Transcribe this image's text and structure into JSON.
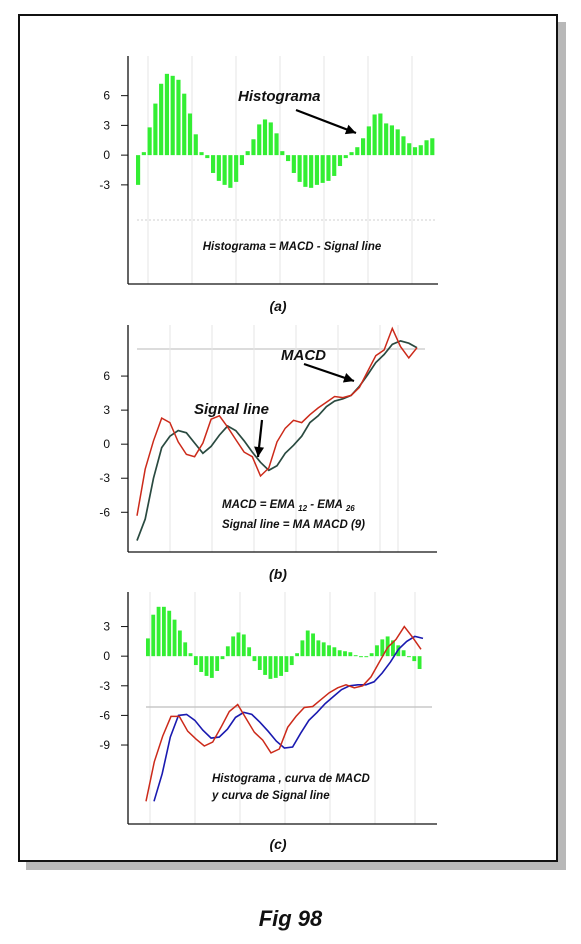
{
  "figure": {
    "title": "Fig 98",
    "panel_captions": [
      "(a)",
      "(b)",
      "(c)"
    ]
  },
  "colors": {
    "histogram": "#33ee33",
    "macd": "#cc2a1a",
    "signal_b": "#2a4a40",
    "signal_c": "#1a1ab0",
    "axis": "#111111",
    "grid": "#e6e6e6"
  },
  "chart_data": [
    {
      "type": "bar",
      "panel": "(a)",
      "ylim": [
        -13,
        10
      ],
      "yticks": [
        6,
        3,
        0,
        -3
      ],
      "values": [
        -3,
        0.3,
        2.8,
        5.2,
        7.2,
        8.2,
        8,
        7.6,
        6.2,
        4.2,
        2.1,
        0.3,
        -0.3,
        -1.8,
        -2.6,
        -3,
        -3.3,
        -2.7,
        -1,
        0.4,
        1.6,
        3.1,
        3.6,
        3.3,
        2.2,
        0.4,
        -0.6,
        -1.8,
        -2.7,
        -3.2,
        -3.3,
        -3,
        -2.8,
        -2.6,
        -2.1,
        -1.1,
        -0.3,
        0.3,
        0.8,
        1.7,
        2.9,
        4.1,
        4.2,
        3.2,
        3,
        2.6,
        1.9,
        1.2,
        0.8,
        1,
        1.5,
        1.7
      ],
      "annotations": [
        "Histograma",
        "Histograma = MACD - Signal line"
      ]
    },
    {
      "type": "line",
      "panel": "(b)",
      "ylim": [
        -9.5,
        10.5
      ],
      "yticks": [
        6,
        3,
        0,
        -3,
        -6
      ],
      "series": [
        {
          "name": "MACD",
          "values": [
            -6.3,
            -2.2,
            0.3,
            2.3,
            1.9,
            0.2,
            -0.9,
            -1.1,
            0.1,
            2.2,
            2.5,
            1.5,
            0.4,
            -0.7,
            -1.1,
            -2.8,
            -2.1,
            0.2,
            1.4,
            2.1,
            1.9,
            2.6,
            3.2,
            3.7,
            4.2,
            4.1,
            4.3,
            5,
            6.4,
            7.8,
            8.3,
            10.2,
            8.6,
            7.6,
            8.5
          ]
        },
        {
          "name": "Signal line",
          "values": [
            -8.5,
            -6.6,
            -3,
            -0.3,
            0.7,
            1.2,
            1,
            0.1,
            -0.8,
            -0.2,
            0.8,
            1.6,
            1.2,
            0.3,
            -0.7,
            -1.6,
            -2.3,
            -1.9,
            -0.8,
            -0.1,
            0.7,
            1.9,
            2.5,
            3.3,
            3.8,
            4,
            4.3,
            5.1,
            6.1,
            7.2,
            7.9,
            8.8,
            9.1,
            8.9,
            8.5
          ]
        }
      ],
      "annotations": [
        "MACD",
        "Signal line",
        "MACD = EMA",
        "12",
        "- EMA",
        "26",
        "Signal line = MA MACD (9)"
      ]
    },
    {
      "type": "bar+line",
      "panel": "(c)",
      "ylim": [
        -17,
        6.5
      ],
      "yticks": [
        3,
        0,
        -3,
        -6,
        -9
      ],
      "histogram": [
        1.8,
        4.2,
        5,
        5,
        4.6,
        3.7,
        2.6,
        1.4,
        0.3,
        -0.9,
        -1.6,
        -2,
        -2.2,
        -1.5,
        -0.3,
        1,
        2,
        2.4,
        2.2,
        0.9,
        -0.5,
        -1.4,
        -1.9,
        -2.3,
        -2.2,
        -2,
        -1.6,
        -0.9,
        0.3,
        1.6,
        2.6,
        2.3,
        1.6,
        1.4,
        1.1,
        0.9,
        0.6,
        0.5,
        0.4,
        0.1,
        0,
        -0.1,
        0.3,
        1.1,
        1.7,
        2,
        1.6,
        1.1,
        0.6,
        0,
        -0.5,
        -1.3
      ],
      "series": [
        {
          "name": "MACD",
          "values": [
            -14.7,
            -10.7,
            -8.1,
            -6.1,
            -6.1,
            -7.6,
            -8.4,
            -9.1,
            -8.7,
            -7.2,
            -5.6,
            -4.9,
            -6.3,
            -7.7,
            -8.5,
            -9.8,
            -9.4,
            -7.2,
            -6.1,
            -5.2,
            -5.1,
            -4.4,
            -3.7,
            -3.2,
            -2.9,
            -3.2,
            -3,
            -2.1,
            -0.6,
            0.9,
            1.7,
            3,
            1.9,
            0.7
          ]
        },
        {
          "name": "Signal line",
          "values": [
            -14.7,
            -11.9,
            -8.2,
            -6,
            -5.9,
            -6.5,
            -7.5,
            -8.3,
            -8.2,
            -7.4,
            -6.2,
            -5.7,
            -5.9,
            -6.7,
            -7.6,
            -8.6,
            -9.3,
            -9.2,
            -7.8,
            -6.5,
            -5.7,
            -4.8,
            -4.1,
            -3.4,
            -3,
            -2.9,
            -2.9,
            -2.6,
            -1.7,
            -0.6,
            0.7,
            1.5,
            2,
            1.8
          ]
        }
      ],
      "annotations": [
        "Histograma , curva de  MACD",
        "y curva de Signal line"
      ]
    }
  ]
}
